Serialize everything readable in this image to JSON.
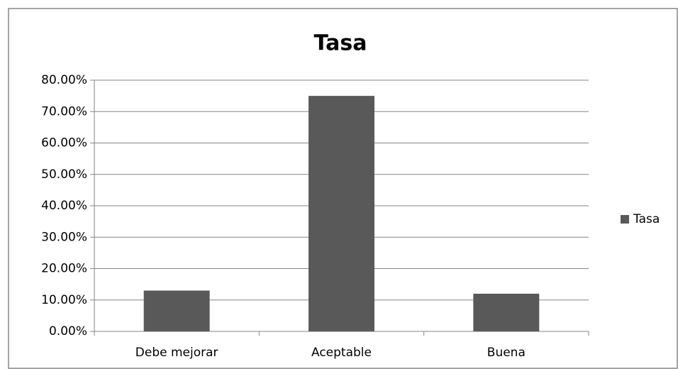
{
  "chart_data": {
    "type": "bar",
    "title": "Tasa",
    "categories": [
      "Debe mejorar",
      "Aceptable",
      "Buena"
    ],
    "series": [
      {
        "name": "Tasa",
        "color": "#595959",
        "values": [
          13,
          75,
          12
        ]
      }
    ],
    "ylim": [
      0,
      80
    ],
    "yticks": [
      {
        "value": 0,
        "label": "0.00%"
      },
      {
        "value": 10,
        "label": "10.00%"
      },
      {
        "value": 20,
        "label": "20.00%"
      },
      {
        "value": 30,
        "label": "30.00%"
      },
      {
        "value": 40,
        "label": "40.00%"
      },
      {
        "value": 50,
        "label": "50.00%"
      },
      {
        "value": 60,
        "label": "60.00%"
      },
      {
        "value": 70,
        "label": "70.00%"
      },
      {
        "value": 80,
        "label": "80.00%"
      }
    ],
    "grid": true,
    "legend": "right"
  }
}
